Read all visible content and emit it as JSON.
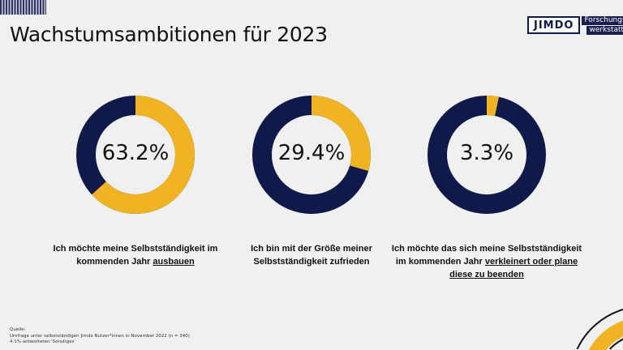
{
  "title": "Wachstumsambitionen für 2023",
  "logo": {
    "brand": "JIMDO",
    "line1": "Forschungs",
    "line2": "werkstatt"
  },
  "colors": {
    "navy": "#0f1a4a",
    "yellow": "#f0b323",
    "background": "#f0f0f0"
  },
  "charts": [
    {
      "value": 63.2,
      "label": "63.2%",
      "caption_pre": "Ich möchte meine Selbstständigkeit im kommenden Jahr ",
      "caption_em": "ausbauen"
    },
    {
      "value": 29.4,
      "label": "29.4%",
      "caption_pre": "Ich bin mit der Größe meiner Selbstständigkeit zufrieden",
      "caption_em": ""
    },
    {
      "value": 3.3,
      "label": "3.3%",
      "caption_pre": "Ich möchte das sich meine Selbstständigkeit im kommenden Jahr ",
      "caption_em": "verkleinert oder plane diese zu beenden"
    }
  ],
  "footer": {
    "line1": "Quelle:",
    "line2": "Umfrage unter selbstständigen Jimdo Nutzer*innen in November 2022 (n = 340)",
    "line3": "4.1% antworteten 'Sonstiges'"
  }
}
